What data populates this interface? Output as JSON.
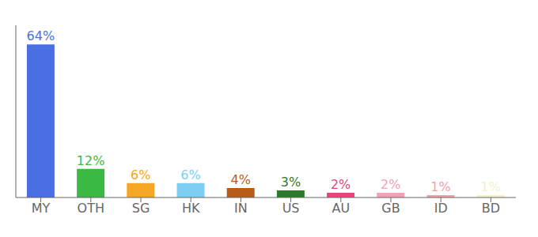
{
  "chart_data": {
    "type": "bar",
    "categories": [
      "MY",
      "OTH",
      "SG",
      "HK",
      "IN",
      "US",
      "AU",
      "GB",
      "ID",
      "BD"
    ],
    "values": [
      64,
      12,
      6,
      6,
      4,
      3,
      2,
      2,
      1,
      1
    ],
    "value_labels": [
      "64%",
      "12%",
      "6%",
      "6%",
      "4%",
      "3%",
      "2%",
      "2%",
      "1%",
      "1%"
    ],
    "colors": [
      "#4a6fe3",
      "#3cb844",
      "#f5a623",
      "#7ecef4",
      "#b85c1a",
      "#2d7a2d",
      "#e8457a",
      "#f4a0b5",
      "#f0a0a8",
      "#f5f0c8"
    ],
    "ylim": [
      0,
      72
    ],
    "grid": false,
    "tick_labels": "x"
  }
}
